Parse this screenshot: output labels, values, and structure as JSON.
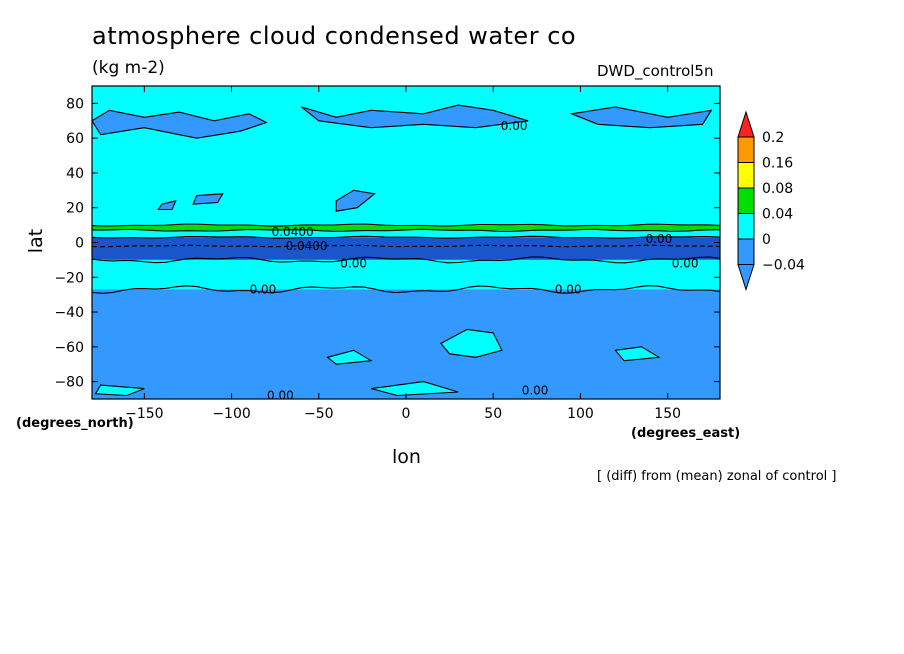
{
  "header": {
    "title": "atmosphere cloud condensed water co",
    "units": "(kg m-2)",
    "run": "DWD_control5n",
    "note": "[ (diff) from (mean) zonal of control ]"
  },
  "colors": {
    "lt0": "#3399ff",
    "b0_004": "#00ffff",
    "b004_008": "#00dd00",
    "b008_016": "#ffff00",
    "b016_02": "#ff9900",
    "gt02": "#ff2222",
    "deep": "#1a55cc"
  },
  "chart_data": {
    "type": "heatmap",
    "xlabel": "lon",
    "ylabel": "lat",
    "xunit": "(degrees_east)",
    "yunit": "(degrees_north)",
    "xlim": [
      -180,
      180
    ],
    "ylim": [
      -90,
      90
    ],
    "xticks": [
      -150,
      -100,
      -50,
      0,
      50,
      100,
      150
    ],
    "yticks": [
      80,
      60,
      40,
      20,
      0,
      -20,
      -40,
      -60,
      -80
    ],
    "colorbar": {
      "levels": [
        0.2,
        0.16,
        0.08,
        0.04,
        0,
        -0.04
      ],
      "extend": "both"
    },
    "zonal_bands": [
      {
        "lat_from": 90,
        "lat_to": 10,
        "range": "0 to 0.04"
      },
      {
        "lat_from": 10,
        "lat_to": 7,
        "range": "0.04 to 0.08"
      },
      {
        "lat_from": 7,
        "lat_to": 3,
        "range": "0 to 0.04"
      },
      {
        "lat_from": 3,
        "lat_to": -10,
        "range": "below -0.04"
      },
      {
        "lat_from": -10,
        "lat_to": -27,
        "range": "0 to 0.04"
      },
      {
        "lat_from": -27,
        "lat_to": -90,
        "range": "-0.04 to 0"
      }
    ],
    "contour_labels": [
      {
        "text": "0.00",
        "lon": 62,
        "lat": 67
      },
      {
        "text": "0.0400",
        "lon": -65,
        "lat": 6
      },
      {
        "text": "0.0400",
        "lon": -57,
        "lat": -2
      },
      {
        "text": "0.00",
        "lon": 145,
        "lat": 2
      },
      {
        "text": "0.00",
        "lon": -30,
        "lat": -12
      },
      {
        "text": "0.00",
        "lon": 160,
        "lat": -12
      },
      {
        "text": "0.00",
        "lon": -82,
        "lat": -27
      },
      {
        "text": "0.00",
        "lon": 93,
        "lat": -27
      },
      {
        "text": "0.00",
        "lon": 74,
        "lat": -85
      },
      {
        "text": "0.00",
        "lon": -72,
        "lat": -88
      }
    ]
  }
}
